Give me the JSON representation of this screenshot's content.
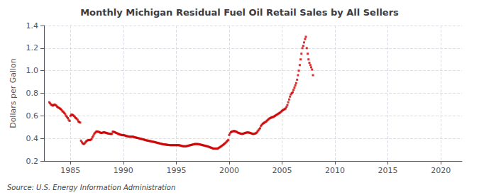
{
  "chart_data": {
    "type": "scatter",
    "title": "Monthly Michigan Residual Fuel Oil Retail Sales by All Sellers",
    "ylabel": "Dollars per Gallon",
    "annotation": "Source: U.S. Energy Information Administration",
    "color": "#cc0000",
    "marker": "square",
    "grid": true,
    "xlim": [
      1982.5,
      2022
    ],
    "xticks": [
      1985,
      1990,
      1995,
      2000,
      2005,
      2010,
      2015,
      2020
    ],
    "ylim": [
      0.2,
      1.4
    ],
    "yticks": [
      0.2,
      0.4,
      0.6,
      0.8,
      {
        "value": 1.0,
        "label": "1.0"
      },
      1.2,
      1.4
    ],
    "x": [
      1983.0,
      1983.08,
      1983.17,
      1983.25,
      1983.33,
      1983.42,
      1983.5,
      1983.58,
      1983.67,
      1983.75,
      1983.83,
      1983.92,
      1984.0,
      1984.08,
      1984.17,
      1984.25,
      1984.33,
      1984.42,
      1984.5,
      1984.58,
      1984.67,
      1984.75,
      1984.83,
      1984.92,
      1985.0,
      1985.08,
      1985.17,
      1985.25,
      1985.33,
      1985.42,
      1985.5,
      1985.58,
      1985.67,
      1985.75,
      1985.83,
      1985.92,
      1986.0,
      1986.08,
      1986.17,
      1986.25,
      1986.33,
      1986.42,
      1986.5,
      1986.58,
      1986.67,
      1986.75,
      1986.83,
      1986.92,
      1987.0,
      1987.08,
      1987.17,
      1987.25,
      1987.33,
      1987.42,
      1987.5,
      1987.58,
      1987.67,
      1987.75,
      1987.83,
      1987.92,
      1988.0,
      1988.08,
      1988.17,
      1988.25,
      1988.33,
      1988.42,
      1988.5,
      1988.58,
      1988.67,
      1988.75,
      1988.83,
      1988.92,
      1989.0,
      1989.08,
      1989.17,
      1989.25,
      1989.33,
      1989.42,
      1989.5,
      1989.58,
      1989.67,
      1989.75,
      1989.83,
      1989.92,
      1990.0,
      1990.08,
      1990.17,
      1990.25,
      1990.33,
      1990.42,
      1990.5,
      1990.58,
      1990.67,
      1990.75,
      1990.83,
      1990.92,
      1991.0,
      1991.08,
      1991.17,
      1991.25,
      1991.33,
      1991.42,
      1991.5,
      1991.58,
      1991.67,
      1991.75,
      1991.83,
      1991.92,
      1992.0,
      1992.08,
      1992.17,
      1992.25,
      1992.33,
      1992.42,
      1992.5,
      1992.58,
      1992.67,
      1992.75,
      1992.83,
      1992.92,
      1993.0,
      1993.08,
      1993.17,
      1993.25,
      1993.33,
      1993.42,
      1993.5,
      1993.58,
      1993.67,
      1993.75,
      1993.83,
      1993.92,
      1994.0,
      1994.08,
      1994.17,
      1994.25,
      1994.33,
      1994.42,
      1994.5,
      1994.58,
      1994.67,
      1994.75,
      1994.83,
      1994.92,
      1995.0,
      1995.08,
      1995.17,
      1995.25,
      1995.33,
      1995.42,
      1995.5,
      1995.58,
      1995.67,
      1995.75,
      1995.83,
      1995.92,
      1996.0,
      1996.08,
      1996.17,
      1996.25,
      1996.33,
      1996.42,
      1996.5,
      1996.58,
      1996.67,
      1996.75,
      1996.83,
      1996.92,
      1997.0,
      1997.08,
      1997.17,
      1997.25,
      1997.33,
      1997.42,
      1997.5,
      1997.58,
      1997.67,
      1997.75,
      1997.83,
      1997.92,
      1998.0,
      1998.08,
      1998.17,
      1998.25,
      1998.33,
      1998.42,
      1998.5,
      1998.58,
      1998.67,
      1998.75,
      1998.83,
      1998.92,
      1999.0,
      1999.08,
      1999.17,
      1999.25,
      1999.33,
      1999.42,
      1999.5,
      1999.58,
      1999.67,
      1999.75,
      1999.83,
      1999.92,
      2000.0,
      2000.08,
      2000.17,
      2000.25,
      2000.33,
      2000.42,
      2000.5,
      2000.58,
      2000.67,
      2000.75,
      2000.83,
      2000.92,
      2001.0,
      2001.08,
      2001.17,
      2001.25,
      2001.33,
      2001.42,
      2001.5,
      2001.58,
      2001.67,
      2001.75,
      2001.83,
      2001.92,
      2002.0,
      2002.08,
      2002.17,
      2002.25,
      2002.33,
      2002.42,
      2002.5,
      2002.58,
      2002.67,
      2002.75,
      2002.83,
      2002.92,
      2003.0,
      2003.08,
      2003.17,
      2003.25,
      2003.33,
      2003.42,
      2003.5,
      2003.58,
      2003.67,
      2003.75,
      2003.83,
      2003.92,
      2004.0,
      2004.08,
      2004.17,
      2004.25,
      2004.33,
      2004.42,
      2004.5,
      2004.58,
      2004.67,
      2004.75,
      2004.83,
      2004.92,
      2005.0,
      2005.08,
      2005.17,
      2005.25,
      2005.33,
      2005.42,
      2005.5,
      2005.58,
      2005.67,
      2005.75,
      2005.83,
      2005.92,
      2006.0,
      2006.08,
      2006.17,
      2006.25,
      2006.33,
      2006.42,
      2006.5,
      2006.58,
      2006.67,
      2006.75,
      2006.83,
      2006.92,
      2007.0,
      2007.08,
      2007.17,
      2007.25,
      2007.33,
      2007.42,
      2007.5,
      2007.58,
      2007.67,
      2007.75,
      2007.83,
      2007.92
    ],
    "values": [
      0.72,
      0.71,
      0.7,
      0.695,
      0.69,
      0.695,
      0.7,
      0.695,
      0.69,
      0.68,
      0.675,
      0.67,
      0.665,
      0.66,
      0.65,
      0.64,
      0.635,
      0.625,
      0.615,
      0.6,
      0.59,
      0.58,
      0.565,
      0.555,
      0.6,
      0.61,
      0.61,
      0.605,
      0.598,
      0.59,
      0.58,
      0.575,
      0.565,
      0.55,
      0.545,
      0.54,
      0.38,
      0.365,
      0.355,
      0.35,
      0.355,
      0.365,
      0.375,
      0.38,
      0.385,
      0.385,
      0.385,
      0.388,
      0.395,
      0.41,
      0.425,
      0.44,
      0.45,
      0.458,
      0.462,
      0.46,
      0.458,
      0.455,
      0.45,
      0.448,
      0.45,
      0.452,
      0.455,
      0.452,
      0.45,
      0.448,
      0.445,
      0.443,
      0.442,
      0.44,
      0.44,
      0.44,
      0.46,
      0.458,
      0.455,
      0.452,
      0.448,
      0.445,
      0.44,
      0.438,
      0.435,
      0.432,
      0.43,
      0.428,
      0.43,
      0.428,
      0.425,
      0.422,
      0.42,
      0.418,
      0.416,
      0.415,
      0.415,
      0.415,
      0.415,
      0.415,
      0.412,
      0.41,
      0.408,
      0.406,
      0.404,
      0.402,
      0.4,
      0.398,
      0.396,
      0.394,
      0.392,
      0.39,
      0.388,
      0.385,
      0.383,
      0.381,
      0.38,
      0.378,
      0.376,
      0.375,
      0.373,
      0.371,
      0.37,
      0.368,
      0.366,
      0.364,
      0.362,
      0.36,
      0.358,
      0.356,
      0.354,
      0.352,
      0.35,
      0.348,
      0.347,
      0.346,
      0.345,
      0.344,
      0.343,
      0.342,
      0.341,
      0.34,
      0.34,
      0.34,
      0.34,
      0.34,
      0.34,
      0.34,
      0.34,
      0.34,
      0.34,
      0.34,
      0.338,
      0.336,
      0.334,
      0.332,
      0.33,
      0.33,
      0.33,
      0.33,
      0.332,
      0.334,
      0.336,
      0.338,
      0.34,
      0.342,
      0.344,
      0.346,
      0.348,
      0.35,
      0.35,
      0.35,
      0.35,
      0.349,
      0.348,
      0.346,
      0.344,
      0.342,
      0.34,
      0.338,
      0.336,
      0.334,
      0.332,
      0.33,
      0.328,
      0.325,
      0.322,
      0.319,
      0.316,
      0.313,
      0.31,
      0.31,
      0.31,
      0.31,
      0.31,
      0.31,
      0.315,
      0.32,
      0.325,
      0.33,
      0.336,
      0.342,
      0.348,
      0.355,
      0.362,
      0.37,
      0.378,
      0.386,
      0.43,
      0.445,
      0.455,
      0.46,
      0.462,
      0.465,
      0.465,
      0.462,
      0.46,
      0.455,
      0.45,
      0.448,
      0.445,
      0.442,
      0.44,
      0.44,
      0.442,
      0.445,
      0.448,
      0.45,
      0.452,
      0.453,
      0.452,
      0.45,
      0.448,
      0.445,
      0.442,
      0.44,
      0.44,
      0.442,
      0.445,
      0.45,
      0.46,
      0.47,
      0.48,
      0.49,
      0.51,
      0.52,
      0.53,
      0.535,
      0.54,
      0.545,
      0.55,
      0.558,
      0.565,
      0.572,
      0.578,
      0.582,
      0.585,
      0.588,
      0.59,
      0.595,
      0.6,
      0.605,
      0.61,
      0.615,
      0.62,
      0.625,
      0.63,
      0.638,
      0.645,
      0.65,
      0.655,
      0.66,
      0.665,
      0.68,
      0.695,
      0.72,
      0.745,
      0.77,
      0.79,
      0.8,
      0.81,
      0.83,
      0.85,
      0.87,
      0.89,
      0.92,
      0.96,
      1.0,
      1.05,
      1.1,
      1.15,
      1.2,
      1.22,
      1.25,
      1.28,
      1.3,
      1.2,
      1.15,
      1.1,
      1.07,
      1.05,
      1.03,
      1.01,
      0.96
    ]
  }
}
